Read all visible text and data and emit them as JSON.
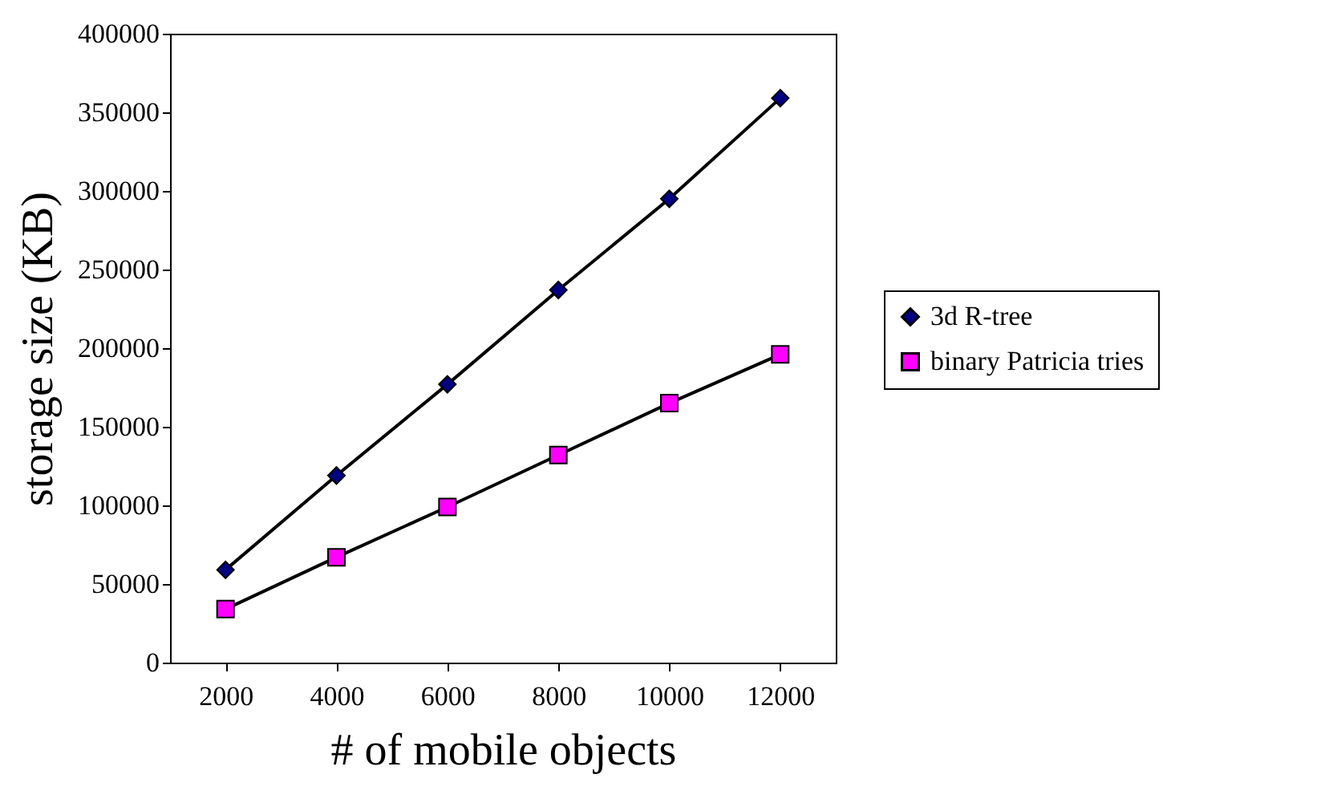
{
  "chart_data": {
    "type": "line",
    "xlabel": "# of mobile objects",
    "ylabel": "storage size (KB)",
    "categories": [
      "2000",
      "4000",
      "6000",
      "8000",
      "10000",
      "12000"
    ],
    "series": [
      {
        "name": "3d R-tree",
        "color": "#000080",
        "marker": "diamond",
        "values": [
          59000,
          119000,
          177000,
          237000,
          295000,
          359000
        ]
      },
      {
        "name": "binary Patricia tries",
        "color": "#ff00ff",
        "marker": "square",
        "values": [
          34000,
          67000,
          99000,
          132000,
          165000,
          196000
        ]
      }
    ],
    "ylim": [
      0,
      400000
    ],
    "yticks": [
      0,
      50000,
      100000,
      150000,
      200000,
      250000,
      300000,
      350000,
      400000
    ],
    "grid": false,
    "legend": "right",
    "line_style": "solid"
  }
}
